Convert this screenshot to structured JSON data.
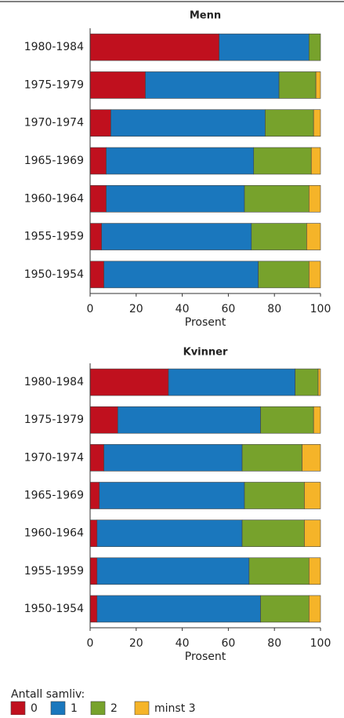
{
  "chart_data": [
    {
      "type": "bar",
      "orientation": "horizontal",
      "title": "Menn",
      "xlabel": "Prosent",
      "categories": [
        "1980-1984",
        "1975-1979",
        "1970-1974",
        "1965-1969",
        "1960-1964",
        "1955-1959",
        "1950-1954"
      ],
      "series": [
        {
          "color": "#c0101e",
          "values": [
            56,
            24,
            9,
            7,
            7,
            5,
            6
          ]
        },
        {
          "color": "#1a77bd",
          "values": [
            39,
            58,
            67,
            64,
            60,
            65,
            67
          ]
        },
        {
          "color": "#77a22c",
          "values": [
            5,
            16,
            21,
            25,
            28,
            24,
            22
          ]
        },
        {
          "color": "#f5b429",
          "values": [
            0,
            2,
            3,
            4,
            5,
            6,
            5
          ]
        }
      ],
      "xlim": [
        0,
        100
      ],
      "xticks": [
        0,
        20,
        40,
        60,
        80,
        100
      ]
    },
    {
      "type": "bar",
      "orientation": "horizontal",
      "title": "Kvinner",
      "xlabel": "Prosent",
      "categories": [
        "1980-1984",
        "1975-1979",
        "1970-1974",
        "1965-1969",
        "1960-1964",
        "1955-1959",
        "1950-1954"
      ],
      "series": [
        {
          "color": "#c0101e",
          "values": [
            34,
            12,
            6,
            4,
            3,
            3,
            3
          ]
        },
        {
          "color": "#1a77bd",
          "values": [
            55,
            62,
            60,
            63,
            63,
            66,
            71
          ]
        },
        {
          "color": "#77a22c",
          "values": [
            10,
            23,
            26,
            26,
            27,
            26,
            21
          ]
        },
        {
          "color": "#f5b429",
          "values": [
            1,
            3,
            8,
            7,
            7,
            5,
            5
          ]
        }
      ],
      "xlim": [
        0,
        100
      ],
      "xticks": [
        0,
        20,
        40,
        60,
        80,
        100
      ]
    }
  ],
  "legend": {
    "title": "Antall samliv:",
    "entries": [
      "0",
      "1",
      "2",
      "minst 3"
    ]
  }
}
